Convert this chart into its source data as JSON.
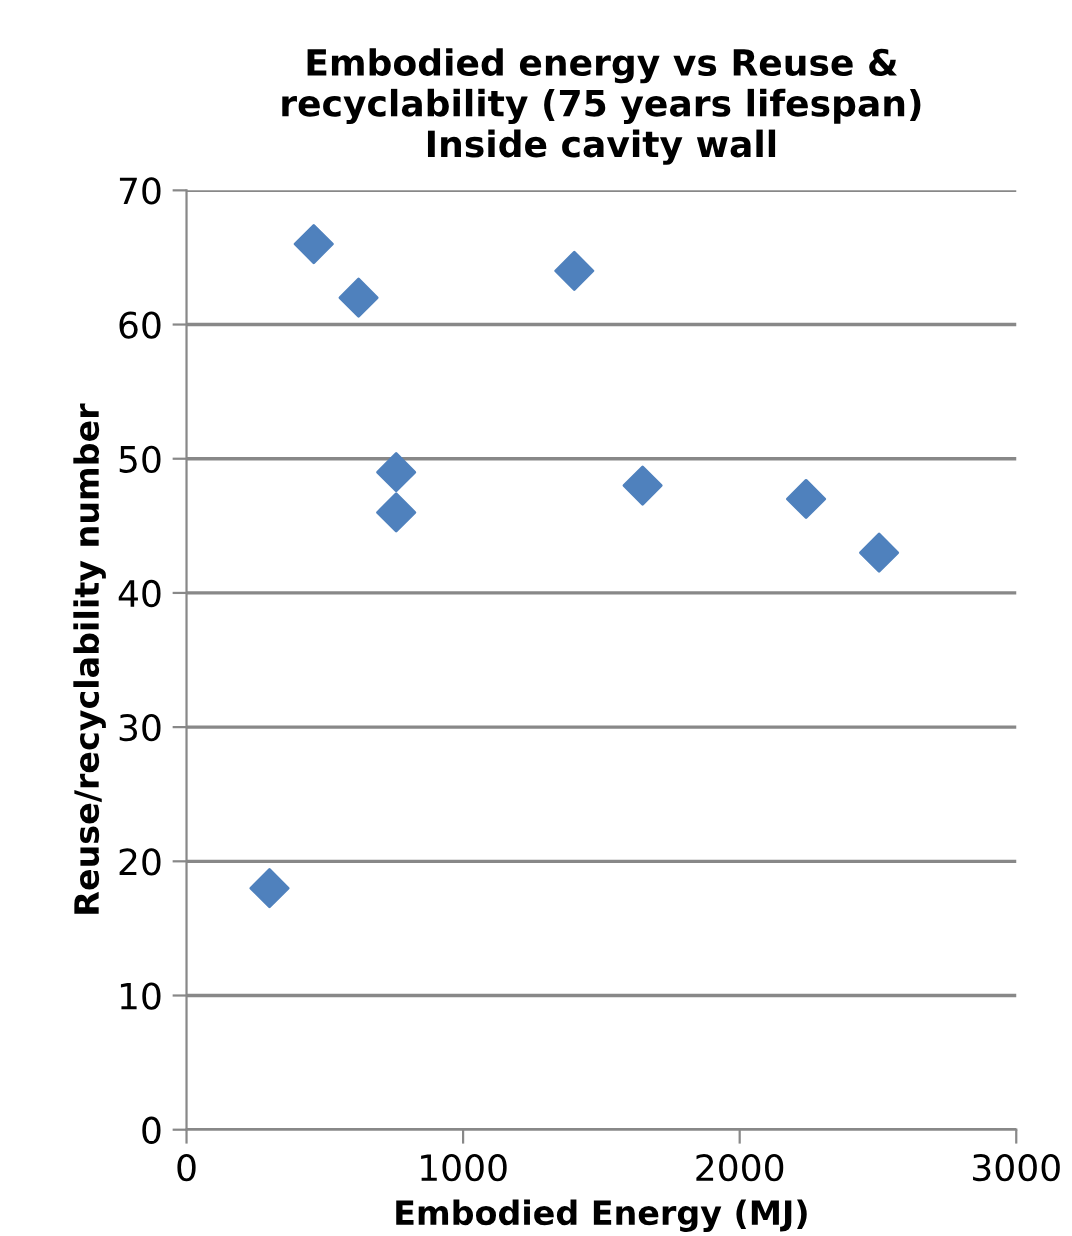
{
  "chart_data": {
    "type": "scatter",
    "title": "Embodied energy vs Reuse &\nrecyclability (75 years lifespan)\nInside cavity wall",
    "xlabel": "Embodied Energy (MJ)",
    "ylabel": "Reuse/recyclability number",
    "x": [
      300,
      460,
      622,
      758,
      758,
      1402,
      1649,
      2240,
      2504
    ],
    "series": [
      {
        "color": "#4f81bd",
        "values": [
          18,
          66,
          62,
          49,
          46,
          64,
          48,
          47,
          43
        ]
      }
    ],
    "xlim": [
      0,
      3000
    ],
    "xticks": [
      0,
      1000,
      2000,
      3000
    ],
    "ylim": [
      0,
      70
    ],
    "yticks": [
      0,
      10,
      20,
      30,
      40,
      50,
      60,
      70
    ],
    "grid": "y",
    "marker": "diamond",
    "legend": false
  }
}
